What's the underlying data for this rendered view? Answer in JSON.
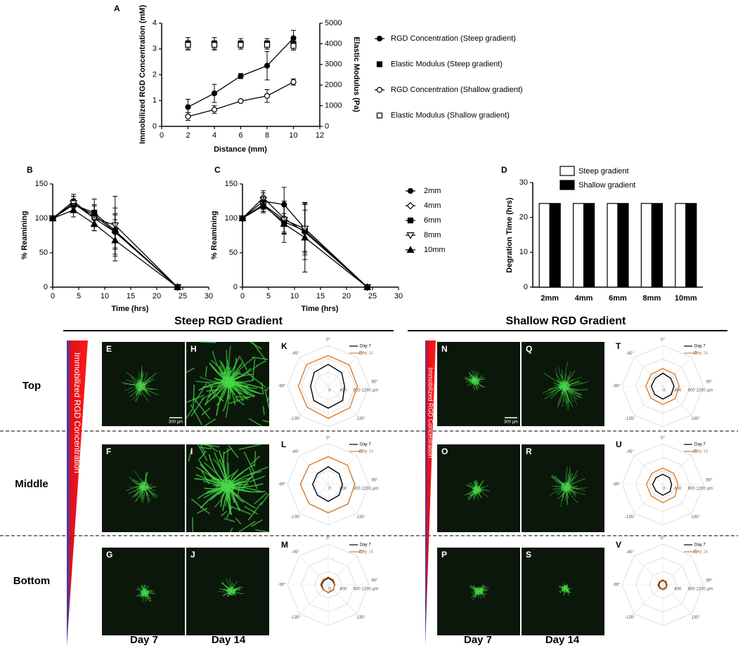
{
  "chart_data": [
    {
      "type": "line",
      "panel": "A",
      "x_label": "Distance (mm)",
      "y_label": "Immobilized RGD Concentration (mM)",
      "y2_label": "Elastic Modulus (Pa)",
      "x": [
        2,
        4,
        6,
        8,
        10
      ],
      "xlim": [
        0,
        12
      ],
      "xticks": [
        0,
        2,
        4,
        6,
        8,
        10,
        12
      ],
      "ylim": [
        0,
        4
      ],
      "yticks": [
        0,
        1,
        2,
        3,
        4
      ],
      "y2lim": [
        0,
        5000
      ],
      "y2ticks": [
        0,
        1000,
        2000,
        3000,
        4000,
        5000
      ],
      "legend": "right",
      "series": [
        {
          "name": "RGD Concentration (Steep gradient)",
          "color": "#000000",
          "marker": "circle-filled",
          "line": true,
          "values": [
            0.75,
            1.28,
            1.95,
            2.35,
            3.42
          ],
          "errors": [
            0.3,
            0.35,
            0.1,
            0.55,
            0.3
          ]
        },
        {
          "name": "Elastic Modulus (Steep gradient)",
          "color": "#000000",
          "marker": "square-filled",
          "line": false,
          "axis": "y2",
          "values": [
            4000,
            4000,
            4000,
            4000,
            4000
          ],
          "errors": [
            300,
            300,
            250,
            250,
            300
          ]
        },
        {
          "name": "RGD Concentration (Shallow gradient)",
          "color": "#000000",
          "marker": "circle-open",
          "line": true,
          "values": [
            0.38,
            0.65,
            0.98,
            1.18,
            1.72
          ],
          "errors": [
            0.15,
            0.15,
            0.05,
            0.25,
            0.12
          ]
        },
        {
          "name": "Elastic Modulus (Shallow gradient)",
          "color": "#000000",
          "marker": "square-open",
          "line": false,
          "axis": "y2",
          "values": [
            3950,
            3950,
            3950,
            3950,
            3900
          ],
          "errors": [
            200,
            200,
            200,
            200,
            200
          ]
        }
      ]
    },
    {
      "type": "line",
      "panel": "B",
      "x_label": "Time (hrs)",
      "y_label": "% Reamining",
      "x": [
        0,
        4,
        8,
        12,
        24
      ],
      "xlim": [
        0,
        30
      ],
      "xticks": [
        0,
        5,
        10,
        15,
        20,
        25,
        30
      ],
      "ylim": [
        0,
        150
      ],
      "yticks": [
        0,
        50,
        100,
        150
      ],
      "series": [
        {
          "color": "#000000",
          "marker": "circle-filled",
          "line": true,
          "values": [
            100,
            125,
            100,
            80,
            0
          ],
          "errors": [
            2,
            10,
            12,
            25,
            2
          ]
        },
        {
          "color": "#000000",
          "marker": "diamond-open",
          "line": true,
          "values": [
            100,
            120,
            105,
            80,
            0
          ],
          "errors": [
            2,
            12,
            15,
            35,
            2
          ]
        },
        {
          "color": "#000000",
          "marker": "square-filled",
          "line": true,
          "values": [
            100,
            120,
            108,
            82,
            0
          ],
          "errors": [
            2,
            8,
            20,
            25,
            2
          ]
        },
        {
          "color": "#000000",
          "marker": "triangle-down-open",
          "line": true,
          "values": [
            100,
            122,
            100,
            90,
            0
          ],
          "errors": [
            2,
            10,
            18,
            42,
            2
          ]
        },
        {
          "color": "#000000",
          "marker": "triangle-up-filled",
          "line": true,
          "values": [
            100,
            112,
            92,
            68,
            0
          ],
          "errors": [
            2,
            10,
            10,
            30,
            2
          ]
        }
      ]
    },
    {
      "type": "line",
      "panel": "C",
      "x_label": "Time (hrs)",
      "y_label": "% Reamining",
      "x": [
        0,
        4,
        8,
        12,
        24
      ],
      "xlim": [
        0,
        30
      ],
      "xticks": [
        0,
        5,
        10,
        15,
        20,
        25,
        30
      ],
      "ylim": [
        0,
        150
      ],
      "yticks": [
        0,
        50,
        100,
        150
      ],
      "legend": "right",
      "series": [
        {
          "name": "2mm",
          "color": "#000000",
          "marker": "circle-filled",
          "line": true,
          "values": [
            100,
            125,
            120,
            85,
            0
          ],
          "errors": [
            2,
            12,
            25,
            35,
            2
          ]
        },
        {
          "name": "4mm",
          "color": "#000000",
          "marker": "diamond-open",
          "line": true,
          "values": [
            100,
            130,
            100,
            80,
            0
          ],
          "errors": [
            2,
            10,
            20,
            40,
            2
          ]
        },
        {
          "name": "6mm",
          "color": "#000000",
          "marker": "square-filled",
          "line": true,
          "values": [
            100,
            118,
            95,
            82,
            0
          ],
          "errors": [
            2,
            8,
            30,
            30,
            2
          ]
        },
        {
          "name": "8mm",
          "color": "#000000",
          "marker": "triangle-down-open",
          "line": true,
          "values": [
            100,
            120,
            98,
            85,
            0
          ],
          "errors": [
            2,
            12,
            20,
            38,
            2
          ]
        },
        {
          "name": "10mm",
          "color": "#000000",
          "marker": "triangle-up-filled",
          "line": true,
          "values": [
            100,
            120,
            92,
            72,
            0
          ],
          "errors": [
            2,
            10,
            15,
            50,
            2
          ]
        }
      ]
    },
    {
      "type": "bar",
      "panel": "D",
      "y_label": "Degration Time (hrs)",
      "categories": [
        "2mm",
        "4mm",
        "6mm",
        "8mm",
        "10mm"
      ],
      "ylim": [
        0,
        30
      ],
      "yticks": [
        0,
        10,
        20,
        30
      ],
      "legend": "top",
      "series": [
        {
          "name": "Steep gradient",
          "color": "#ffffff",
          "values": [
            24,
            24,
            24,
            24,
            24
          ]
        },
        {
          "name": "Shallow gradient",
          "color": "#000000",
          "values": [
            24,
            24,
            24,
            24,
            24
          ]
        }
      ]
    },
    {
      "type": "radar",
      "panel": "K",
      "categories": [
        "0°",
        "45°",
        "90°",
        "135°",
        null,
        "-135°",
        "-90°",
        "-45°"
      ],
      "rlim": [
        0,
        1200
      ],
      "rticks": [
        0,
        400,
        800,
        1200
      ],
      "r_unit": "µm",
      "series": [
        {
          "name": "Day 7",
          "color": "#000000",
          "values": [
            640,
            560,
            480,
            600,
            650,
            600,
            520,
            580
          ]
        },
        {
          "name": "Day 14",
          "color": "#e07b28",
          "values": [
            900,
            880,
            860,
            900,
            950,
            880,
            880,
            900
          ]
        }
      ]
    },
    {
      "type": "radar",
      "panel": "L",
      "categories": [
        "0°",
        "45°",
        "90°",
        "135°",
        null,
        "-135°",
        "-90°",
        "-45°"
      ],
      "rlim": [
        0,
        1200
      ],
      "rticks": [
        0,
        400,
        800,
        1200
      ],
      "r_unit": "µm",
      "series": [
        {
          "name": "Day 7",
          "color": "#000000",
          "values": [
            520,
            450,
            420,
            450,
            500,
            450,
            460,
            450
          ]
        },
        {
          "name": "Day 14",
          "color": "#e07b28",
          "values": [
            820,
            800,
            780,
            820,
            840,
            800,
            820,
            800
          ]
        }
      ]
    },
    {
      "type": "radar",
      "panel": "M",
      "categories": [
        "0°",
        "45°",
        "90°",
        "135°",
        null,
        "-135°",
        "-90°",
        "-45°"
      ],
      "rlim": [
        0,
        1200
      ],
      "rticks": [
        0,
        400,
        800,
        1200
      ],
      "r_unit": "µm",
      "series": [
        {
          "name": "Day 7",
          "color": "#000000",
          "values": [
            200,
            180,
            190,
            210,
            230,
            200,
            200,
            180
          ]
        },
        {
          "name": "Day 14",
          "color": "#e07b28",
          "values": [
            230,
            210,
            200,
            200,
            220,
            210,
            230,
            220
          ]
        }
      ]
    },
    {
      "type": "radar",
      "panel": "T",
      "categories": [
        "0°",
        "45°",
        "90°",
        "135°",
        null,
        "-135°",
        "-90°",
        "-45°"
      ],
      "rlim": [
        0,
        1200
      ],
      "rticks": [
        0,
        400,
        800,
        1200
      ],
      "r_unit": "µm",
      "series": [
        {
          "name": "Day 7",
          "color": "#000000",
          "values": [
            380,
            330,
            330,
            350,
            380,
            340,
            340,
            320
          ]
        },
        {
          "name": "Day 14",
          "color": "#e07b28",
          "values": [
            520,
            500,
            480,
            520,
            540,
            500,
            500,
            490
          ]
        }
      ]
    },
    {
      "type": "radar",
      "panel": "U",
      "categories": [
        "0°",
        "45°",
        "90°",
        "135°",
        null,
        "-135°",
        "-90°",
        "-45°"
      ],
      "rlim": [
        0,
        1200
      ],
      "rticks": [
        0,
        400,
        800,
        1200
      ],
      "r_unit": "µm",
      "series": [
        {
          "name": "Day 7",
          "color": "#000000",
          "values": [
            300,
            280,
            260,
            300,
            320,
            280,
            300,
            280
          ]
        },
        {
          "name": "Day 14",
          "color": "#e07b28",
          "values": [
            480,
            460,
            450,
            500,
            540,
            480,
            480,
            460
          ]
        }
      ]
    },
    {
      "type": "radar",
      "panel": "V",
      "categories": [
        "0°",
        "45°",
        "90°",
        "135°",
        null,
        "-135°",
        "-90°",
        "-45°"
      ],
      "rlim": [
        0,
        1200
      ],
      "rticks": [
        0,
        400,
        800,
        1200
      ],
      "r_unit": "µm",
      "series": [
        {
          "name": "Day 7",
          "color": "#000000",
          "values": [
            130,
            120,
            110,
            130,
            140,
            120,
            120,
            120
          ]
        },
        {
          "name": "Day 14",
          "color": "#e07b28",
          "values": [
            150,
            140,
            130,
            140,
            150,
            140,
            150,
            140
          ]
        }
      ]
    }
  ],
  "figure": {
    "section_titles": [
      "Steep RGD Gradient",
      "Shallow RGD Gradient"
    ],
    "row_labels": [
      "Top",
      "Middle",
      "Bottom"
    ],
    "column_labels": [
      "Day 7",
      "Day 14",
      "Day 7",
      "Day 14"
    ],
    "gradient_label": "Immobilized RGD Concentration",
    "scale_bar": "300 µm",
    "image_panels": [
      "E",
      "H",
      "F",
      "I",
      "G",
      "J",
      "N",
      "Q",
      "O",
      "R",
      "P",
      "S"
    ]
  }
}
